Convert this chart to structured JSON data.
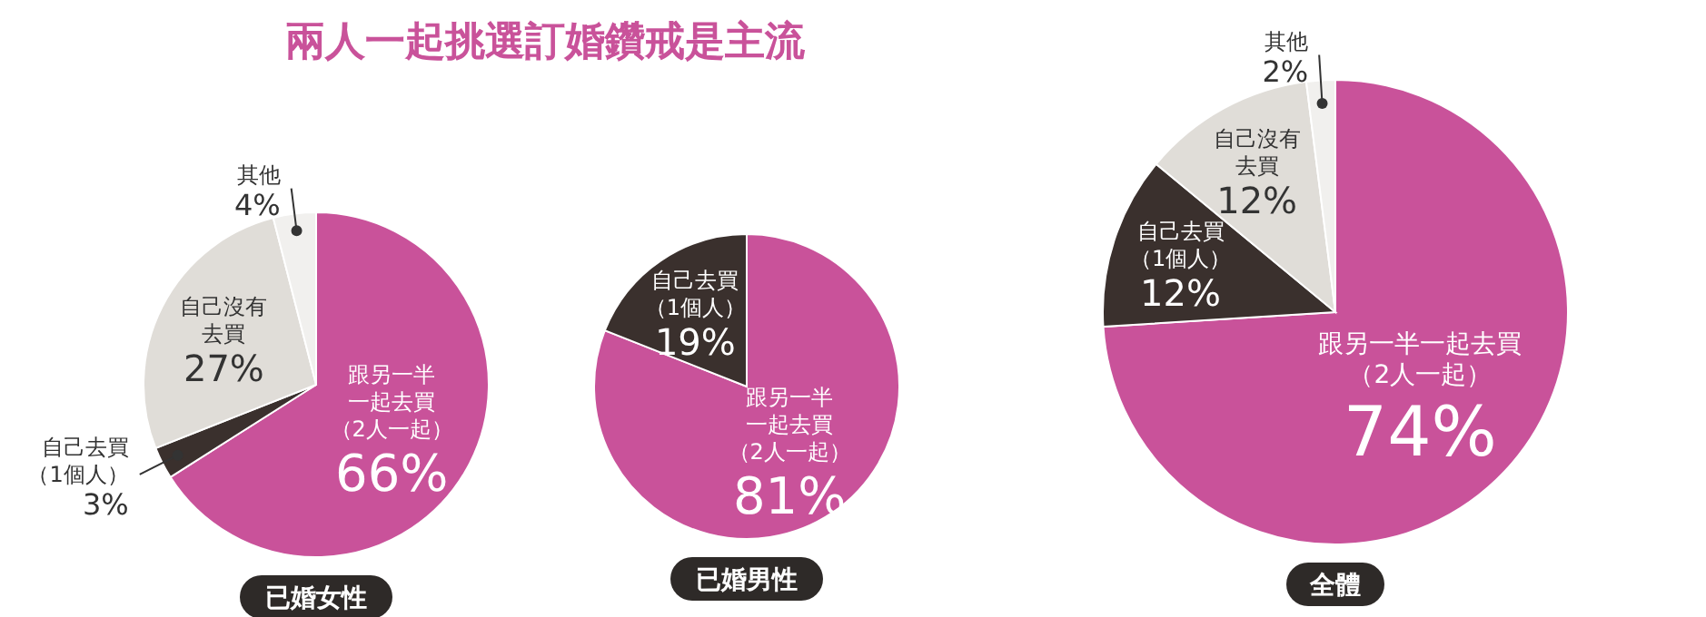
{
  "chart_data": [
    {
      "type": "pie",
      "title": "兩人一起挑選訂婚鑽戒是主流",
      "subtitle": "已婚女性",
      "categories": [
        "跟另一半一起去買（2人一起）",
        "自己去買（1個人）",
        "自己沒有去買",
        "其他"
      ],
      "values": [
        66,
        3,
        27,
        4
      ],
      "value_labels": [
        "66%",
        "3%",
        "27%",
        "4%"
      ],
      "colors": [
        "#c9529a",
        "#3a302d",
        "#e0ddd8",
        "#f1f0ee"
      ]
    },
    {
      "type": "pie",
      "subtitle": "已婚男性",
      "categories": [
        "跟另一半一起去買（2人一起）",
        "自己去買（1個人）"
      ],
      "values": [
        81,
        19
      ],
      "value_labels": [
        "81%",
        "19%"
      ],
      "colors": [
        "#c9529a",
        "#3a302d"
      ]
    },
    {
      "type": "pie",
      "subtitle": "全體",
      "categories": [
        "跟另一半一起去買（2人一起）",
        "自己去買（1個人）",
        "自己沒有去買",
        "其他"
      ],
      "values": [
        74,
        12,
        12,
        2
      ],
      "value_labels": [
        "74%",
        "12%",
        "12%",
        "2%"
      ],
      "colors": [
        "#c9529a",
        "#3a302d",
        "#e0ddd8",
        "#f1f0ee"
      ]
    }
  ]
}
